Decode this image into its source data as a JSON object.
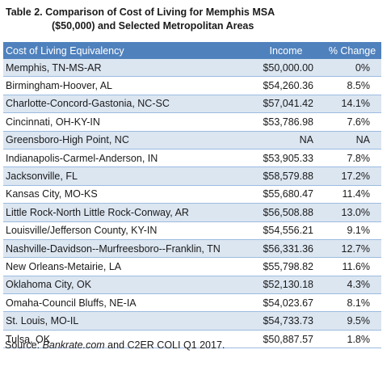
{
  "title": {
    "line1": "Table 2. Comparison of Cost of Living for Memphis MSA",
    "line2": "($50,000) and Selected Metropolitan Areas"
  },
  "table": {
    "headers": [
      "Cost of Living Equivalency",
      "Income",
      "% Change"
    ],
    "rows": [
      {
        "area": "Memphis, TN-MS-AR",
        "income": "$50,000.00",
        "change": "0%"
      },
      {
        "area": "Birmingham-Hoover, AL",
        "income": "$54,260.36",
        "change": "8.5%"
      },
      {
        "area": "Charlotte-Concord-Gastonia, NC-SC",
        "income": "$57,041.42",
        "change": "14.1%"
      },
      {
        "area": "Cincinnati, OH-KY-IN",
        "income": "$53,786.98",
        "change": "7.6%"
      },
      {
        "area": "Greensboro-High Point, NC",
        "income": "NA",
        "change": "NA"
      },
      {
        "area": "Indianapolis-Carmel-Anderson, IN",
        "income": "$53,905.33",
        "change": "7.8%"
      },
      {
        "area": "Jacksonville, FL",
        "income": "$58,579.88",
        "change": "17.2%"
      },
      {
        "area": "Kansas City, MO-KS",
        "income": "$55,680.47",
        "change": "11.4%"
      },
      {
        "area": "Little Rock-North Little Rock-Conway, AR",
        "income": "$56,508.88",
        "change": "13.0%"
      },
      {
        "area": "Louisville/Jefferson County, KY-IN",
        "income": "$54,556.21",
        "change": "9.1%"
      },
      {
        "area": "Nashville-Davidson--Murfreesboro--Franklin, TN",
        "income": "$56,331.36",
        "change": "12.7%"
      },
      {
        "area": "New Orleans-Metairie, LA",
        "income": "$55,798.82",
        "change": "11.6%"
      },
      {
        "area": "Oklahoma City, OK",
        "income": "$52,130.18",
        "change": "4.3%"
      },
      {
        "area": "Omaha-Council Bluffs, NE-IA",
        "income": "$54,023.67",
        "change": "8.1%"
      },
      {
        "area": "St. Louis, MO-IL",
        "income": "$54,733.73",
        "change": "9.5%"
      },
      {
        "area": "Tulsa, OK",
        "income": "$50,887.57",
        "change": "1.8%"
      }
    ]
  },
  "source": {
    "prefix": "Source: ",
    "italic": "Bankrate.com",
    "suffix": " and C2ER COLI Q1 2017."
  }
}
